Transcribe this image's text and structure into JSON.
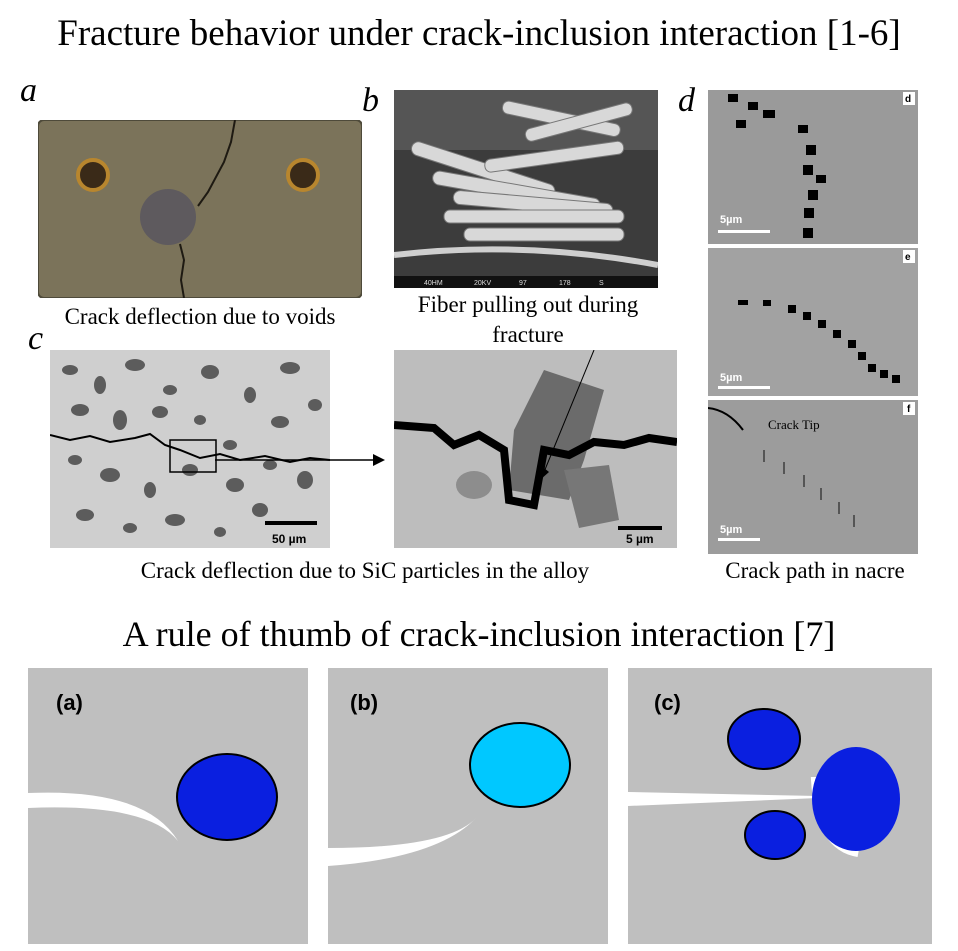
{
  "slide_title": "Fracture behavior under crack-inclusion interaction [1-6]",
  "panels": {
    "a": {
      "label": "a",
      "caption": "Crack deflection due to voids"
    },
    "b": {
      "label": "b",
      "caption_line1": "Fiber pulling out during",
      "caption_line2": "fracture",
      "info_bar": [
        "40HM",
        "20KV",
        "97",
        "178",
        "S"
      ]
    },
    "c": {
      "label": "c",
      "caption": "Crack deflection due to SiC particles in the alloy",
      "scale_left": "50 µm",
      "scale_right": "5 µm"
    },
    "d": {
      "label": "d",
      "caption": "Crack path in nacre",
      "sub_labels": [
        "d",
        "e",
        "f"
      ],
      "scale": "5µm",
      "tip_label": "Crack Tip"
    }
  },
  "section_title": "A rule of thumb of crack-inclusion interaction [7]",
  "diagrams": [
    {
      "label": "(a)",
      "inclusion_color": "#0a1fe0"
    },
    {
      "label": "(b)",
      "inclusion_color": "#00c8ff"
    },
    {
      "label": "(c)",
      "inclusion_color": "#0a1fe0"
    }
  ]
}
